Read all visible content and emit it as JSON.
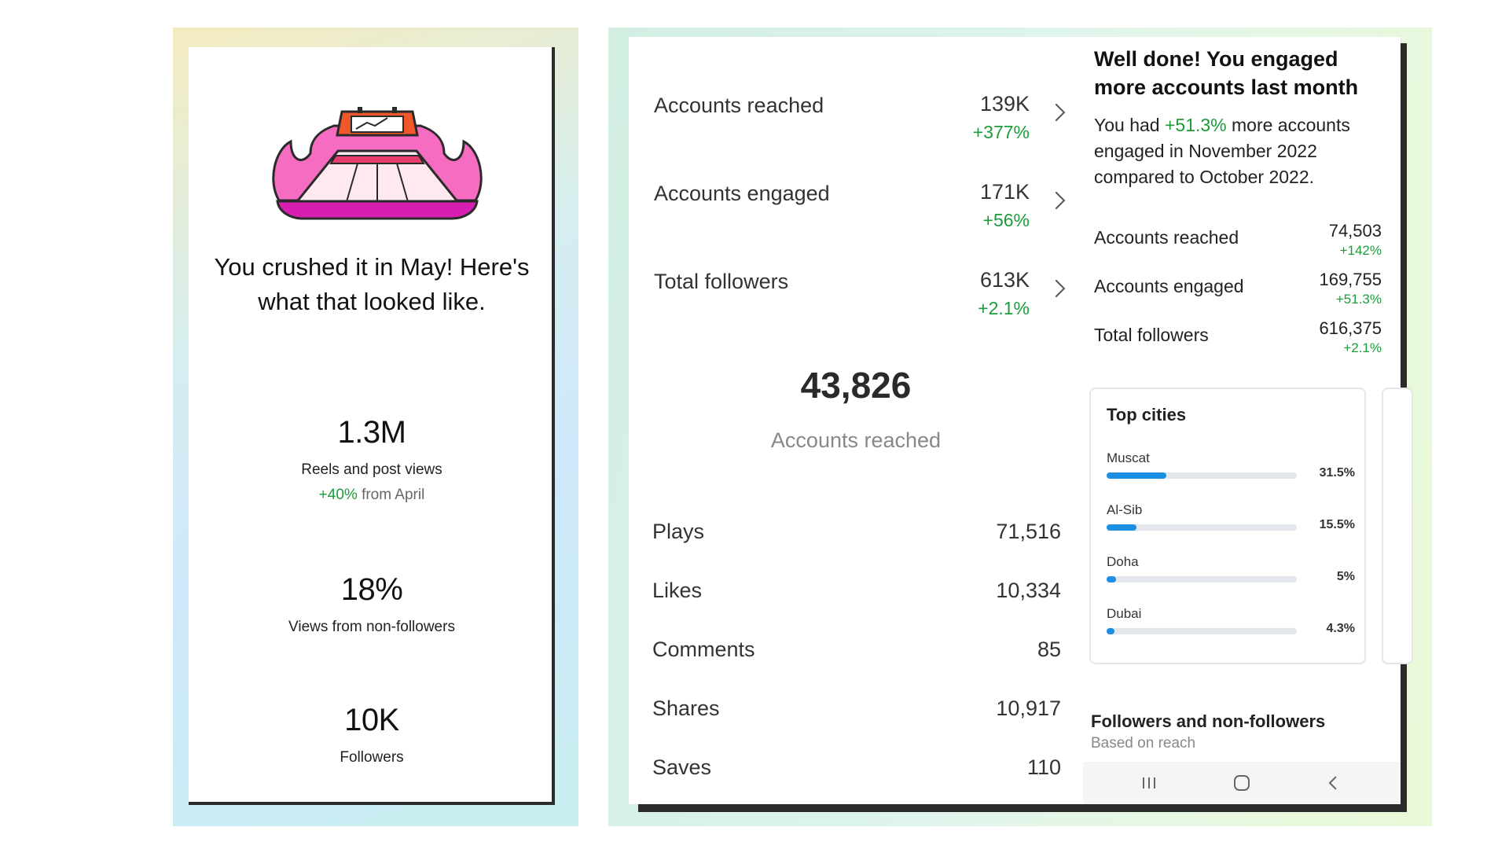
{
  "left_card": {
    "title": "You crushed it in May! Here's what that looked like.",
    "stats": [
      {
        "value": "1.3M",
        "label": "Reels and post views",
        "change_pct": "+40%",
        "change_suffix": " from April"
      },
      {
        "value": "18%",
        "label": "Views from non-followers"
      },
      {
        "value": "10K",
        "label": "Followers"
      }
    ]
  },
  "overview": {
    "rows": [
      {
        "label": "Accounts reached",
        "value": "139K",
        "change": "+377%"
      },
      {
        "label": "Accounts engaged",
        "value": "171K",
        "change": "+56%"
      },
      {
        "label": "Total followers",
        "value": "613K",
        "change": "+2.1%"
      }
    ],
    "highlight_value": "43,826",
    "highlight_label": "Accounts reached",
    "metrics": [
      {
        "label": "Plays",
        "value": "71,516"
      },
      {
        "label": "Likes",
        "value": "10,334"
      },
      {
        "label": "Comments",
        "value": "85"
      },
      {
        "label": "Shares",
        "value": "10,917"
      },
      {
        "label": "Saves",
        "value": "110"
      }
    ]
  },
  "summary": {
    "heading": "Well done! You engaged more accounts last month",
    "text_prefix": "You had ",
    "text_pct": "+51.3%",
    "text_suffix": " more accounts engaged in November 2022 compared to October 2022.",
    "rows": [
      {
        "label": "Accounts reached",
        "value": "74,503",
        "change": "+142%"
      },
      {
        "label": "Accounts engaged",
        "value": "169,755",
        "change": "+51.3%"
      },
      {
        "label": "Total followers",
        "value": "616,375",
        "change": "+2.1%"
      }
    ],
    "top_cities": {
      "title": "Top cities",
      "cities": [
        {
          "name": "Muscat",
          "pct": "31.5%",
          "share": 0.315
        },
        {
          "name": "Al-Sib",
          "pct": "15.5%",
          "share": 0.155
        },
        {
          "name": "Doha",
          "pct": "5%",
          "share": 0.05
        },
        {
          "name": "Dubai",
          "pct": "4.3%",
          "share": 0.043
        }
      ]
    },
    "followers_title": "Followers and non-followers",
    "followers_sub": "Based on reach"
  },
  "colors": {
    "positive": "#1b9c3a",
    "bar": "#1a8fe3",
    "illustration_pink": "#f06bbf",
    "illustration_magenta": "#d61fb0"
  }
}
